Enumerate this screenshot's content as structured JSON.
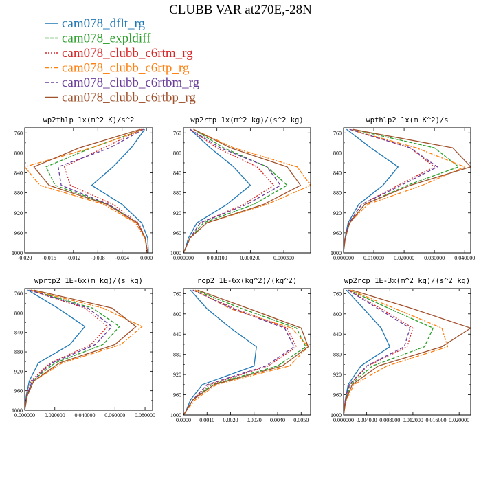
{
  "figure": {
    "title": "CLUBB VAR at270E,-28N"
  },
  "legend": [
    {
      "label": "cam078_dflt_rg",
      "color": "#1f77b4",
      "dash": ""
    },
    {
      "label": "cam078_expldiff",
      "color": "#2ca02c",
      "dash": "5,2"
    },
    {
      "label": "cam078_clubb_c6rtm_rg",
      "color": "#d62728",
      "dash": "2,2"
    },
    {
      "label": "cam078_clubb_c6rtp_rg",
      "color": "#ff7f0e",
      "dash": "6,2,2,2"
    },
    {
      "label": "cam078_clubb_c6rtbm_rg",
      "color": "#6a3d9a",
      "dash": "5,3"
    },
    {
      "label": "cam078_clubb_c6rtbp_rg",
      "color": "#a0522d",
      "dash": ""
    }
  ],
  "chart_data": [
    {
      "type": "line",
      "title": "wp2thlp  1x(m^2 K)/s^2",
      "xlim": [
        -0.02,
        0.001
      ],
      "xticks": [
        -0.02,
        -0.016,
        -0.012,
        -0.008,
        -0.004,
        0.0
      ],
      "xticklabels": [
        "-0.020",
        "-0.016",
        "-0.012",
        "-0.008",
        "-0.004",
        "0.000"
      ],
      "ylim": [
        1000,
        750
      ],
      "yticks": [
        760,
        800,
        840,
        880,
        920,
        960,
        1000
      ],
      "y": [
        753,
        790,
        828,
        865,
        903,
        940,
        970,
        993,
        1000
      ],
      "series": [
        {
          "name": "cam078_dflt_rg",
          "x": [
            -0.0003,
            -0.0025,
            -0.0055,
            -0.009,
            -0.004,
            -0.0008,
            0.0002,
            0.0003,
            0.0003
          ]
        },
        {
          "name": "cam078_expldiff",
          "x": [
            -0.0005,
            -0.009,
            -0.0165,
            -0.015,
            -0.0062,
            -0.0015,
            -0.0002,
            0.0001,
            0.0002
          ]
        },
        {
          "name": "cam078_clubb_c6rtm_rg",
          "x": [
            -0.0008,
            -0.007,
            -0.0135,
            -0.0125,
            -0.0055,
            -0.0013,
            -0.0002,
            0.0001,
            0.0002
          ]
        },
        {
          "name": "cam078_clubb_c6rtp_rg",
          "x": [
            -0.0005,
            -0.009,
            -0.02,
            -0.0175,
            -0.007,
            -0.0018,
            -0.0003,
            0.0001,
            0.0002
          ]
        },
        {
          "name": "cam078_clubb_c6rtbm_rg",
          "x": [
            -0.0005,
            -0.006,
            -0.0145,
            -0.014,
            -0.0062,
            -0.0015,
            -0.0002,
            0.0001,
            0.0002
          ]
        },
        {
          "name": "cam078_clubb_c6rtbp_rg",
          "x": [
            -0.001,
            -0.011,
            -0.0185,
            -0.016,
            -0.0065,
            -0.0015,
            -0.0002,
            0.0001,
            0.0002
          ]
        }
      ]
    },
    {
      "type": "line",
      "title": "wp2rtp  1x(m^2 kg)/(s^2 kg)",
      "xlim": [
        0.0,
        0.00038
      ],
      "xticks": [
        0.0,
        0.0001,
        0.0002,
        0.0003
      ],
      "xticklabels": [
        "0.000000",
        "0.000100",
        "0.000200",
        "0.000300"
      ],
      "ylim": [
        1000,
        750
      ],
      "yticks": [
        760,
        800,
        840,
        880,
        920,
        960,
        1000
      ],
      "y": [
        753,
        790,
        828,
        865,
        903,
        940,
        970,
        993,
        1000
      ],
      "series": [
        {
          "name": "cam078_dflt_rg",
          "x": [
            2e-05,
            8e-05,
            0.00015,
            0.0002,
            0.00013,
            4e-05,
            1.5e-05,
            5e-06,
            0.0
          ]
        },
        {
          "name": "cam078_expldiff",
          "x": [
            3e-05,
            0.00012,
            0.00025,
            0.00031,
            0.00021,
            6e-05,
            2e-05,
            5e-06,
            0.0
          ]
        },
        {
          "name": "cam078_clubb_c6rtm_rg",
          "x": [
            2e-05,
            0.0001,
            0.00022,
            0.00027,
            0.00018,
            5e-05,
            2e-05,
            5e-06,
            0.0
          ]
        },
        {
          "name": "cam078_clubb_c6rtp_rg",
          "x": [
            3e-05,
            0.00015,
            0.00034,
            0.00038,
            0.00025,
            7e-05,
            2e-05,
            5e-06,
            0.0
          ]
        },
        {
          "name": "cam078_clubb_c6rtbm_rg",
          "x": [
            2e-05,
            0.00011,
            0.00025,
            0.00029,
            0.00019,
            5e-05,
            2e-05,
            5e-06,
            0.0
          ]
        },
        {
          "name": "cam078_clubb_c6rtbp_rg",
          "x": [
            3e-05,
            0.00014,
            0.00031,
            0.00035,
            0.00024,
            7e-05,
            2e-05,
            5e-06,
            0.0
          ]
        }
      ]
    },
    {
      "type": "line",
      "title": "wpthlp2  1x(m K^2)/s",
      "xlim": [
        0.0,
        0.042
      ],
      "xticks": [
        0.0,
        0.01,
        0.02,
        0.03,
        0.04
      ],
      "xticklabels": [
        "0.000000",
        "0.010000",
        "0.020000",
        "0.030000",
        "0.040000"
      ],
      "ylim": [
        1000,
        750
      ],
      "yticks": [
        760,
        800,
        840,
        880,
        920,
        960,
        1000
      ],
      "y": [
        753,
        790,
        828,
        865,
        903,
        940,
        970,
        993,
        1000
      ],
      "series": [
        {
          "name": "cam078_dflt_rg",
          "x": [
            0.001,
            0.009,
            0.018,
            0.013,
            0.005,
            0.0015,
            0.0005,
            0.0001,
            0.0
          ]
        },
        {
          "name": "cam078_expldiff",
          "x": [
            0.003,
            0.03,
            0.038,
            0.021,
            0.007,
            0.002,
            0.0006,
            0.0001,
            0.0
          ]
        },
        {
          "name": "cam078_clubb_c6rtm_rg",
          "x": [
            0.002,
            0.022,
            0.03,
            0.018,
            0.006,
            0.0018,
            0.0005,
            0.0001,
            0.0
          ]
        },
        {
          "name": "cam078_clubb_c6rtp_rg",
          "x": [
            0.002,
            0.024,
            0.04,
            0.026,
            0.008,
            0.002,
            0.0006,
            0.0001,
            0.0
          ]
        },
        {
          "name": "cam078_clubb_c6rtbm_rg",
          "x": [
            0.002,
            0.022,
            0.031,
            0.019,
            0.006,
            0.0018,
            0.0005,
            0.0001,
            0.0
          ]
        },
        {
          "name": "cam078_clubb_c6rtbp_rg",
          "x": [
            0.003,
            0.036,
            0.042,
            0.022,
            0.007,
            0.002,
            0.0006,
            0.0001,
            0.0
          ]
        }
      ]
    },
    {
      "type": "line",
      "title": "wprtp2  1E-6x(m kg)/(s kg)",
      "xlim": [
        0.0,
        0.085
      ],
      "xticks": [
        0.0,
        0.02,
        0.04,
        0.06,
        0.08
      ],
      "xticklabels": [
        "0.000000",
        "0.020000",
        "0.040000",
        "0.060000",
        "0.080000"
      ],
      "ylim": [
        1000,
        750
      ],
      "yticks": [
        760,
        800,
        840,
        880,
        920,
        960,
        1000
      ],
      "y": [
        753,
        790,
        828,
        865,
        903,
        940,
        970,
        993,
        1000
      ],
      "series": [
        {
          "name": "cam078_dflt_rg",
          "x": [
            0.002,
            0.022,
            0.04,
            0.03,
            0.009,
            0.003,
            0.001,
            0.0002,
            0.0
          ]
        },
        {
          "name": "cam078_expldiff",
          "x": [
            0.004,
            0.045,
            0.063,
            0.052,
            0.02,
            0.005,
            0.0015,
            0.0003,
            0.0
          ]
        },
        {
          "name": "cam078_clubb_c6rtm_rg",
          "x": [
            0.003,
            0.04,
            0.055,
            0.044,
            0.017,
            0.004,
            0.0012,
            0.0003,
            0.0
          ]
        },
        {
          "name": "cam078_clubb_c6rtp_rg",
          "x": [
            0.004,
            0.052,
            0.078,
            0.064,
            0.025,
            0.006,
            0.0018,
            0.0004,
            0.0
          ]
        },
        {
          "name": "cam078_clubb_c6rtbm_rg",
          "x": [
            0.003,
            0.042,
            0.058,
            0.047,
            0.018,
            0.005,
            0.0013,
            0.0003,
            0.0
          ]
        },
        {
          "name": "cam078_clubb_c6rtbp_rg",
          "x": [
            0.006,
            0.058,
            0.074,
            0.06,
            0.023,
            0.006,
            0.0017,
            0.0004,
            0.0
          ]
        }
      ]
    },
    {
      "type": "line",
      "title": "rcp2  1E-6x(kg^2)/(kg^2)",
      "xlim": [
        0.0,
        0.0054
      ],
      "xticks": [
        0.0,
        0.001,
        0.002,
        0.003,
        0.004,
        0.005
      ],
      "xticklabels": [
        "0.0000",
        "0.0010",
        "0.0020",
        "0.0030",
        "0.0040",
        "0.0050"
      ],
      "ylim": [
        1000,
        750
      ],
      "yticks": [
        760,
        800,
        840,
        880,
        920,
        960,
        1000
      ],
      "y": [
        753,
        790,
        828,
        865,
        903,
        940,
        970,
        993,
        1000
      ],
      "series": [
        {
          "name": "cam078_dflt_rg",
          "x": [
            0.0003,
            0.001,
            0.002,
            0.0031,
            0.003,
            0.0008,
            0.0003,
            0.0001,
            0.0
          ]
        },
        {
          "name": "cam078_expldiff",
          "x": [
            0.0005,
            0.0025,
            0.0048,
            0.0052,
            0.004,
            0.0012,
            0.0004,
            0.0001,
            0.0
          ]
        },
        {
          "name": "cam078_clubb_c6rtm_rg",
          "x": [
            0.0004,
            0.0022,
            0.0044,
            0.0048,
            0.0036,
            0.0011,
            0.0004,
            0.0001,
            0.0
          ]
        },
        {
          "name": "cam078_clubb_c6rtp_rg",
          "x": [
            0.0005,
            0.002,
            0.0046,
            0.0053,
            0.0045,
            0.0014,
            0.0005,
            0.0001,
            0.0
          ]
        },
        {
          "name": "cam078_clubb_c6rtbm_rg",
          "x": [
            0.0004,
            0.0021,
            0.0043,
            0.0047,
            0.0035,
            0.001,
            0.0004,
            0.0001,
            0.0
          ]
        },
        {
          "name": "cam078_clubb_c6rtbp_rg",
          "x": [
            0.0006,
            0.0028,
            0.005,
            0.0053,
            0.0042,
            0.0013,
            0.0004,
            0.0001,
            0.0
          ]
        }
      ]
    },
    {
      "type": "line",
      "title": "wp2rcp  1E-3x(m^2 kg)/(s^2 kg)",
      "xlim": [
        0.0,
        0.022
      ],
      "xticks": [
        0.0,
        0.004,
        0.008,
        0.012,
        0.016,
        0.02
      ],
      "xticklabels": [
        "0.000000",
        "0.004000",
        "0.008000",
        "0.012000",
        "0.016000",
        "0.020000"
      ],
      "ylim": [
        1000,
        750
      ],
      "yticks": [
        760,
        800,
        840,
        880,
        920,
        960,
        1000
      ],
      "y": [
        753,
        790,
        828,
        865,
        903,
        940,
        970,
        993,
        1000
      ],
      "series": [
        {
          "name": "cam078_dflt_rg",
          "x": [
            0.0005,
            0.0035,
            0.0065,
            0.008,
            0.003,
            0.0008,
            0.0003,
            0.0001,
            0.0
          ]
        },
        {
          "name": "cam078_expldiff",
          "x": [
            0.001,
            0.008,
            0.0155,
            0.014,
            0.005,
            0.0012,
            0.0004,
            0.0001,
            0.0
          ]
        },
        {
          "name": "cam078_clubb_c6rtm_rg",
          "x": [
            0.0008,
            0.0065,
            0.012,
            0.011,
            0.0042,
            0.001,
            0.0003,
            0.0001,
            0.0
          ]
        },
        {
          "name": "cam078_clubb_c6rtp_rg",
          "x": [
            0.0012,
            0.009,
            0.017,
            0.018,
            0.0075,
            0.0018,
            0.0005,
            0.0001,
            0.0
          ]
        },
        {
          "name": "cam078_clubb_c6rtbm_rg",
          "x": [
            0.0008,
            0.006,
            0.0115,
            0.0105,
            0.004,
            0.001,
            0.0003,
            0.0001,
            0.0
          ]
        },
        {
          "name": "cam078_clubb_c6rtbp_rg",
          "x": [
            0.0015,
            0.012,
            0.022,
            0.017,
            0.006,
            0.0015,
            0.0004,
            0.0001,
            0.0
          ]
        }
      ]
    }
  ]
}
